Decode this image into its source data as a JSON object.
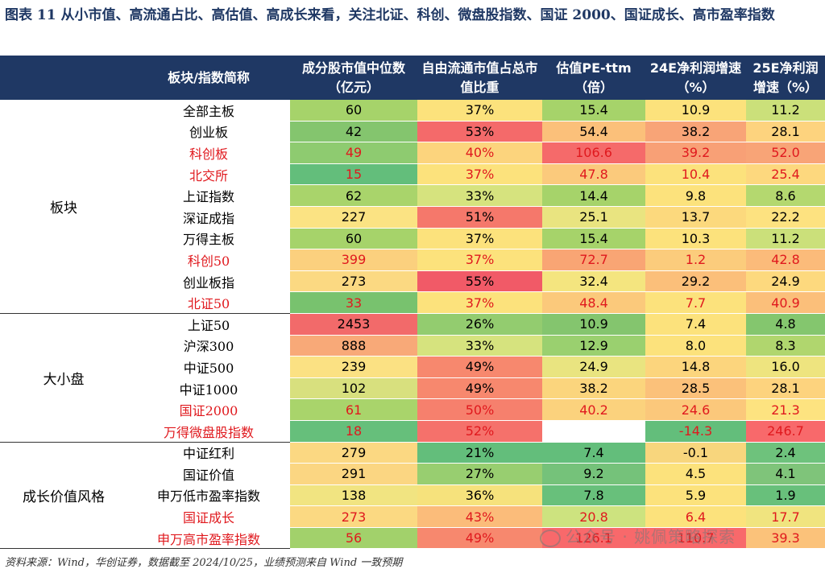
{
  "title": "图表 11   从小市值、高流通占比、高估值、高成长来看，关注北证、科创、微盘股指数、国证 2000、国证成长、高市盈率指数",
  "headers": [
    "板块/指数简称",
    "成分股市值中位数（亿元）",
    "自由流通市值占总市值比重",
    "估值PE-ttm（倍）",
    "24E净利润增速（%）",
    "25E净利润增速（%）"
  ],
  "groups": [
    {
      "name": "板块",
      "rows": [
        {
          "name": "全部主板",
          "highlight": false,
          "cells": [
            {
              "v": "60",
              "bg": "#a6d36a",
              "red": false
            },
            {
              "v": "37%",
              "bg": "#fce27c",
              "red": false
            },
            {
              "v": "15.4",
              "bg": "#a6d36a",
              "red": false
            },
            {
              "v": "10.9",
              "bg": "#fce27c",
              "red": false
            },
            {
              "v": "11.2",
              "bg": "#cbe07a",
              "red": false
            }
          ]
        },
        {
          "name": "创业板",
          "highlight": false,
          "cells": [
            {
              "v": "42",
              "bg": "#84c56e",
              "red": false
            },
            {
              "v": "53%",
              "bg": "#f46a6a",
              "red": false
            },
            {
              "v": "54.4",
              "bg": "#fbc07a",
              "red": false
            },
            {
              "v": "38.2",
              "bg": "#f8a477",
              "red": false
            },
            {
              "v": "28.1",
              "bg": "#fdd37e",
              "red": false
            }
          ]
        },
        {
          "name": "科创板",
          "highlight": true,
          "cells": [
            {
              "v": "49",
              "bg": "#8ecb70",
              "red": true
            },
            {
              "v": "40%",
              "bg": "#fcd47d",
              "red": true
            },
            {
              "v": "106.6",
              "bg": "#f56a6a",
              "red": true
            },
            {
              "v": "39.2",
              "bg": "#f8a076",
              "red": true
            },
            {
              "v": "52.0",
              "bg": "#f8a477",
              "red": true
            }
          ]
        },
        {
          "name": "北交所",
          "highlight": true,
          "cells": [
            {
              "v": "15",
              "bg": "#63be7b",
              "red": true
            },
            {
              "v": "37%",
              "bg": "#fce27c",
              "red": true
            },
            {
              "v": "47.8",
              "bg": "#fbca7c",
              "red": true
            },
            {
              "v": "10.4",
              "bg": "#fce27c",
              "red": true
            },
            {
              "v": "25.4",
              "bg": "#fdd87e",
              "red": true
            }
          ]
        },
        {
          "name": "上证指数",
          "highlight": false,
          "cells": [
            {
              "v": "62",
              "bg": "#a9d46b",
              "red": false
            },
            {
              "v": "33%",
              "bg": "#d6e37e",
              "red": false
            },
            {
              "v": "14.4",
              "bg": "#a6d36a",
              "red": false
            },
            {
              "v": "9.8",
              "bg": "#fce27c",
              "red": false
            },
            {
              "v": "8.6",
              "bg": "#b4d86f",
              "red": false
            }
          ]
        },
        {
          "name": "深证成指",
          "highlight": false,
          "cells": [
            {
              "v": "227",
              "bg": "#fbe383",
              "red": false
            },
            {
              "v": "51%",
              "bg": "#f5786b",
              "red": false
            },
            {
              "v": "25.1",
              "bg": "#e9e480",
              "red": false
            },
            {
              "v": "13.7",
              "bg": "#fcd97d",
              "red": false
            },
            {
              "v": "22.2",
              "bg": "#fde280",
              "red": false
            }
          ]
        },
        {
          "name": "万得主板",
          "highlight": false,
          "cells": [
            {
              "v": "60",
              "bg": "#a6d36a",
              "red": false
            },
            {
              "v": "37%",
              "bg": "#fce27c",
              "red": false
            },
            {
              "v": "15.4",
              "bg": "#a6d36a",
              "red": false
            },
            {
              "v": "10.3",
              "bg": "#fce27c",
              "red": false
            },
            {
              "v": "11.2",
              "bg": "#cbe07a",
              "red": false
            }
          ]
        },
        {
          "name": "科创50",
          "highlight": true,
          "cells": [
            {
              "v": "399",
              "bg": "#fbd07e",
              "red": true
            },
            {
              "v": "37%",
              "bg": "#fce27c",
              "red": true
            },
            {
              "v": "72.7",
              "bg": "#f9a574",
              "red": true
            },
            {
              "v": "1.2",
              "bg": "#fbcc7c",
              "red": true
            },
            {
              "v": "42.8",
              "bg": "#fbbb7a",
              "red": true
            }
          ]
        },
        {
          "name": "创业板指",
          "highlight": false,
          "cells": [
            {
              "v": "273",
              "bg": "#fbd982",
              "red": false
            },
            {
              "v": "55%",
              "bg": "#f15a67",
              "red": false
            },
            {
              "v": "32.4",
              "bg": "#f4e57f",
              "red": false
            },
            {
              "v": "29.2",
              "bg": "#fbbf7a",
              "red": false
            },
            {
              "v": "24.9",
              "bg": "#fdd97e",
              "red": false
            }
          ]
        },
        {
          "name": "北证50",
          "highlight": true,
          "cells": [
            {
              "v": "33",
              "bg": "#78c26e",
              "red": true
            },
            {
              "v": "37%",
              "bg": "#fce27c",
              "red": true
            },
            {
              "v": "48.4",
              "bg": "#fbc97b",
              "red": true
            },
            {
              "v": "7.7",
              "bg": "#fce27c",
              "red": true
            },
            {
              "v": "40.9",
              "bg": "#fbbf7a",
              "red": true
            }
          ]
        }
      ]
    },
    {
      "name": "大小盘",
      "rows": [
        {
          "name": "上证50",
          "highlight": false,
          "cells": [
            {
              "v": "2453",
              "bg": "#f26a6a",
              "red": false
            },
            {
              "v": "26%",
              "bg": "#93cc6f",
              "red": false
            },
            {
              "v": "10.9",
              "bg": "#84c56e",
              "red": false
            },
            {
              "v": "7.4",
              "bg": "#fce27c",
              "red": false
            },
            {
              "v": "4.8",
              "bg": "#84c66e",
              "red": false
            }
          ]
        },
        {
          "name": "沪深300",
          "highlight": false,
          "cells": [
            {
              "v": "888",
              "bg": "#f8a978",
              "red": false
            },
            {
              "v": "33%",
              "bg": "#d6e37e",
              "red": false
            },
            {
              "v": "12.9",
              "bg": "#9ad06f",
              "red": false
            },
            {
              "v": "8.0",
              "bg": "#fce27c",
              "red": false
            },
            {
              "v": "8.3",
              "bg": "#b0d66e",
              "red": false
            }
          ]
        },
        {
          "name": "中证500",
          "highlight": false,
          "cells": [
            {
              "v": "239",
              "bg": "#fbe183",
              "red": false
            },
            {
              "v": "49%",
              "bg": "#f7886e",
              "red": false
            },
            {
              "v": "24.9",
              "bg": "#e9e480",
              "red": false
            },
            {
              "v": "14.8",
              "bg": "#fcd57d",
              "red": false
            },
            {
              "v": "16.0",
              "bg": "#eee47f",
              "red": false
            }
          ]
        },
        {
          "name": "中证1000",
          "highlight": false,
          "cells": [
            {
              "v": "102",
              "bg": "#d8e07e",
              "red": false
            },
            {
              "v": "49%",
              "bg": "#f7886e",
              "red": false
            },
            {
              "v": "38.2",
              "bg": "#fbd57d",
              "red": false
            },
            {
              "v": "28.5",
              "bg": "#fbc17a",
              "red": false
            },
            {
              "v": "28.1",
              "bg": "#fdd37e",
              "red": false
            }
          ]
        },
        {
          "name": "国证2000",
          "highlight": true,
          "cells": [
            {
              "v": "61",
              "bg": "#a9d46b",
              "red": true
            },
            {
              "v": "50%",
              "bg": "#f6806d",
              "red": true
            },
            {
              "v": "40.2",
              "bg": "#fbd27d",
              "red": true
            },
            {
              "v": "24.6",
              "bg": "#fbc87b",
              "red": true
            },
            {
              "v": "21.3",
              "bg": "#fde380",
              "red": true
            }
          ]
        },
        {
          "name": "万得微盘股指数",
          "highlight": true,
          "cells": [
            {
              "v": "18",
              "bg": "#66bf7b",
              "red": true
            },
            {
              "v": "52%",
              "bg": "#f5716b",
              "red": true
            },
            {
              "v": "",
              "bg": "#ffffff",
              "red": true
            },
            {
              "v": "-14.3",
              "bg": "#63be7b",
              "red": true
            },
            {
              "v": "246.7",
              "bg": "#f8696b",
              "red": true
            }
          ]
        }
      ]
    },
    {
      "name": "成长价值风格",
      "rows": [
        {
          "name": "中证红利",
          "highlight": false,
          "cells": [
            {
              "v": "279",
              "bg": "#fbd882",
              "red": false
            },
            {
              "v": "21%",
              "bg": "#63be7b",
              "red": false
            },
            {
              "v": "7.4",
              "bg": "#63be7b",
              "red": false
            },
            {
              "v": "-0.1",
              "bg": "#f8d67d",
              "red": false
            },
            {
              "v": "2.4",
              "bg": "#6ec27c",
              "red": false
            }
          ]
        },
        {
          "name": "国证价值",
          "highlight": false,
          "cells": [
            {
              "v": "291",
              "bg": "#fbd682",
              "red": false
            },
            {
              "v": "27%",
              "bg": "#98ce70",
              "red": false
            },
            {
              "v": "9.2",
              "bg": "#75c27a",
              "red": false
            },
            {
              "v": "4.5",
              "bg": "#fce27c",
              "red": false
            },
            {
              "v": "4.1",
              "bg": "#7fc47a",
              "red": false
            }
          ]
        },
        {
          "name": "申万低市盈率指数",
          "highlight": false,
          "cells": [
            {
              "v": "138",
              "bg": "#f1e481",
              "red": false
            },
            {
              "v": "36%",
              "bg": "#f6e27c",
              "red": false
            },
            {
              "v": "7.8",
              "bg": "#68c07b",
              "red": false
            },
            {
              "v": "5.9",
              "bg": "#fce27c",
              "red": false
            },
            {
              "v": "1.9",
              "bg": "#68c07b",
              "red": false
            }
          ]
        },
        {
          "name": "国证成长",
          "highlight": true,
          "cells": [
            {
              "v": "273",
              "bg": "#fbd982",
              "red": true
            },
            {
              "v": "43%",
              "bg": "#fbbc7a",
              "red": true
            },
            {
              "v": "20.8",
              "bg": "#cde37f",
              "red": true
            },
            {
              "v": "6.4",
              "bg": "#fce27c",
              "red": true
            },
            {
              "v": "17.7",
              "bg": "#f0e47f",
              "red": true
            }
          ]
        },
        {
          "name": "申万高市盈率指数",
          "highlight": true,
          "cells": [
            {
              "v": "56",
              "bg": "#a2d16b",
              "red": true
            },
            {
              "v": "49%",
              "bg": "#f7886e",
              "red": true
            },
            {
              "v": "126.1",
              "bg": "#f8696b",
              "red": true
            },
            {
              "v": "110.7",
              "bg": "#f8696b",
              "red": true
            },
            {
              "v": "39.3",
              "bg": "#fbc27a",
              "red": true
            }
          ]
        }
      ]
    }
  ],
  "source": "资料来源：Wind，华创证券，数据截至 2024/10/25，业绩预测来自 Wind 一致预期",
  "watermark": "公众号 · 姚佩策略探索"
}
